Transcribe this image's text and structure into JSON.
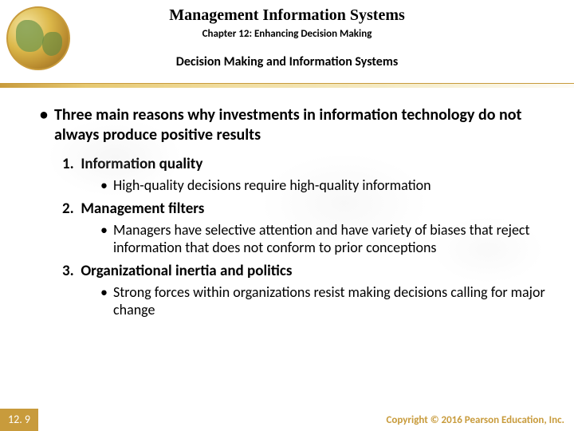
{
  "header": {
    "main_title": "Management Information Systems",
    "chapter": "Chapter 12: Enhancing Decision Making",
    "section": "Decision Making and Information Systems"
  },
  "main_bullet": "Three main reasons why investments in information technology do not always produce positive results",
  "items": [
    {
      "num": "1.",
      "title": "Information quality",
      "sub": "High-quality decisions require high-quality information"
    },
    {
      "num": "2.",
      "title": "Management filters",
      "sub": "Managers have selective attention and have variety of biases that reject information that does not conform to prior conceptions"
    },
    {
      "num": "3.",
      "title": "Organizational inertia and politics",
      "sub": "Strong forces within organizations resist making decisions calling for major change"
    }
  ],
  "footer": {
    "page": "12. 9",
    "copyright": "Copyright © 2016 Pearson Education, Inc."
  },
  "colors": {
    "accent": "#c89b3c",
    "text": "#000000"
  }
}
